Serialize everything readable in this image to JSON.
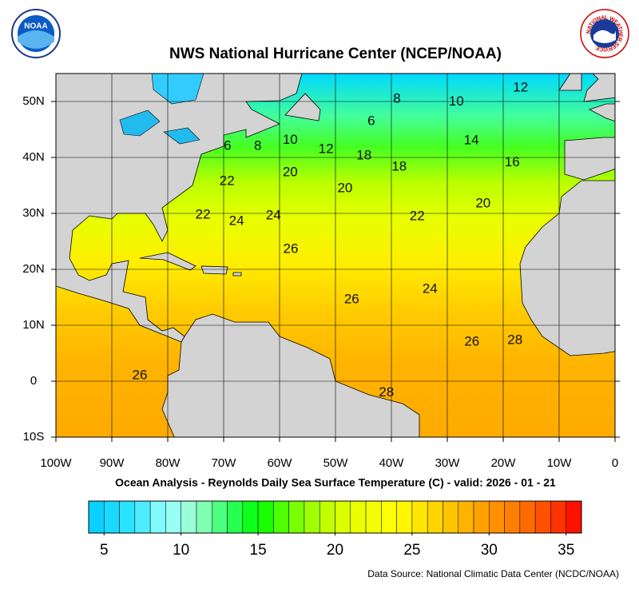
{
  "title": "NWS National Hurricane Center (NCEP/NOAA)",
  "subtitle": "Ocean Analysis - Reynolds Daily Sea Surface Temperature (C) - valid: 2026 - 01 - 21",
  "source": "Data Source: National Climatic Data Center (NCDC/NOAA)",
  "logos": {
    "left": "NOAA",
    "right": "NATIONAL WEATHER SERVICE"
  },
  "map": {
    "xlim": [
      -100,
      0
    ],
    "ylim": [
      -10,
      55
    ],
    "xticks": [
      {
        "value": -100,
        "label": "100W"
      },
      {
        "value": -90,
        "label": "90W"
      },
      {
        "value": -80,
        "label": "80W"
      },
      {
        "value": -70,
        "label": "70W"
      },
      {
        "value": -60,
        "label": "60W"
      },
      {
        "value": -50,
        "label": "50W"
      },
      {
        "value": -40,
        "label": "40W"
      },
      {
        "value": -30,
        "label": "30W"
      },
      {
        "value": -20,
        "label": "20W"
      },
      {
        "value": -10,
        "label": "10W"
      },
      0
    ],
    "yticks": [
      {
        "value": -10,
        "label": "10S"
      },
      0,
      {
        "value": 10,
        "label": "10N"
      },
      {
        "value": 20,
        "label": "20N"
      },
      {
        "value": 30,
        "label": "30N"
      },
      {
        "value": 40,
        "label": "40N"
      },
      {
        "value": 50,
        "label": "50N"
      }
    ],
    "contour_labels": [
      {
        "value": 12,
        "lon": -16.9,
        "lat": 52.4
      },
      {
        "value": 8,
        "lon": -39,
        "lat": 50.4
      },
      {
        "value": 10,
        "lon": -28.4,
        "lat": 49.9
      },
      {
        "value": 6,
        "lon": -43.6,
        "lat": 46.4
      },
      {
        "value": 6,
        "lon": -69.3,
        "lat": 42
      },
      {
        "value": 8,
        "lon": -63.9,
        "lat": 42
      },
      {
        "value": 10,
        "lon": -58.1,
        "lat": 43.1
      },
      {
        "value": 12,
        "lon": -51.7,
        "lat": 41.4
      },
      {
        "value": 18,
        "lon": -44.9,
        "lat": 40.3
      },
      {
        "value": 14,
        "lon": -25.7,
        "lat": 43
      },
      {
        "value": 16,
        "lon": -18.4,
        "lat": 39.1
      },
      {
        "value": 18,
        "lon": -38.6,
        "lat": 38.3
      },
      {
        "value": 20,
        "lon": -58.1,
        "lat": 37.3
      },
      {
        "value": 20,
        "lon": -48.3,
        "lat": 34.4
      },
      {
        "value": 22,
        "lon": -69.4,
        "lat": 35.7
      },
      {
        "value": 20,
        "lon": -23.6,
        "lat": 31.7
      },
      {
        "value": 22,
        "lon": -73.7,
        "lat": 29.7
      },
      {
        "value": 24,
        "lon": -67.7,
        "lat": 28.6
      },
      {
        "value": 24,
        "lon": -61.1,
        "lat": 29.6
      },
      {
        "value": 22,
        "lon": -35.4,
        "lat": 29.4
      },
      {
        "value": 26,
        "lon": -58,
        "lat": 23.6
      },
      {
        "value": 24,
        "lon": -33.1,
        "lat": 16.4
      },
      {
        "value": 26,
        "lon": -47.1,
        "lat": 14.6
      },
      {
        "value": 26,
        "lon": -25.6,
        "lat": 7
      },
      {
        "value": 28,
        "lon": -17.9,
        "lat": 7.3
      },
      {
        "value": 26,
        "lon": -85,
        "lat": 1
      },
      {
        "value": 28,
        "lon": -40.9,
        "lat": -2.1
      }
    ]
  },
  "colorbar": {
    "lim": [
      4,
      36
    ],
    "ticks": [
      5,
      10,
      15,
      20,
      25,
      30,
      35
    ],
    "color_stops": [
      [
        4,
        "#00ccff"
      ],
      [
        7,
        "#33e6ff"
      ],
      [
        9,
        "#99ffff"
      ],
      [
        11,
        "#99ffcc"
      ],
      [
        13,
        "#33ff66"
      ],
      [
        15,
        "#00ff00"
      ],
      [
        17,
        "#66ff00"
      ],
      [
        19,
        "#b3ff00"
      ],
      [
        21,
        "#e6ff00"
      ],
      [
        24,
        "#ffff00"
      ],
      [
        26,
        "#ffdd00"
      ],
      [
        28,
        "#ffbb00"
      ],
      [
        30,
        "#ff9900"
      ],
      [
        32,
        "#ff7700"
      ],
      [
        34,
        "#ff4400"
      ],
      [
        36,
        "#ff0000"
      ]
    ]
  }
}
